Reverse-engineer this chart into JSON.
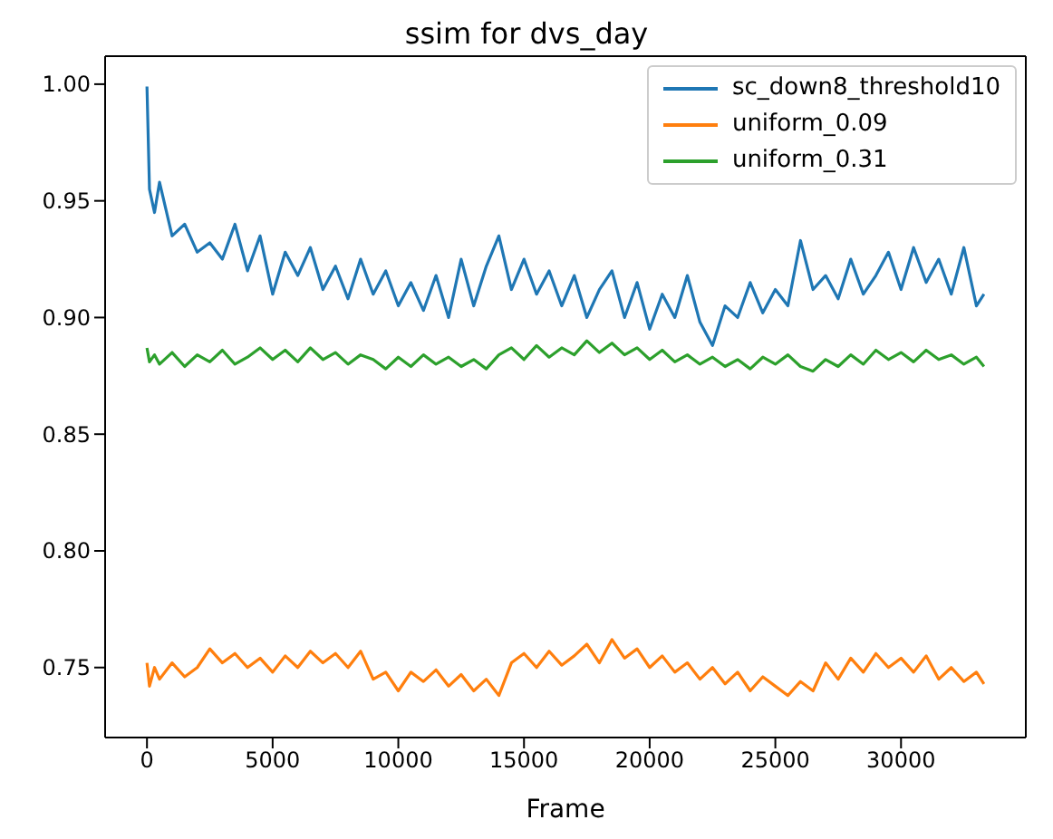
{
  "chart_data": {
    "type": "line",
    "title": "ssim for dvs_day",
    "xlabel": "Frame",
    "x": [
      0,
      100,
      300,
      500,
      1000,
      1500,
      2000,
      2500,
      3000,
      3500,
      4000,
      4500,
      5000,
      5500,
      6000,
      6500,
      7000,
      7500,
      8000,
      8500,
      9000,
      9500,
      10000,
      10500,
      11000,
      11500,
      12000,
      12500,
      13000,
      13500,
      14000,
      14500,
      15000,
      15500,
      16000,
      16500,
      17000,
      17500,
      18000,
      18500,
      19000,
      19500,
      20000,
      20500,
      21000,
      21500,
      22000,
      22500,
      23000,
      23500,
      24000,
      24500,
      25000,
      25500,
      26000,
      26500,
      27000,
      27500,
      28000,
      28500,
      29000,
      29500,
      30000,
      30500,
      31000,
      31500,
      32000,
      32500,
      33000,
      33300
    ],
    "series": [
      {
        "name": "sc_down8_threshold10",
        "color": "#1f77b4",
        "values": [
          0.999,
          0.955,
          0.945,
          0.958,
          0.935,
          0.94,
          0.928,
          0.932,
          0.925,
          0.94,
          0.92,
          0.935,
          0.91,
          0.928,
          0.918,
          0.93,
          0.912,
          0.922,
          0.908,
          0.925,
          0.91,
          0.92,
          0.905,
          0.915,
          0.903,
          0.918,
          0.9,
          0.925,
          0.905,
          0.922,
          0.935,
          0.912,
          0.925,
          0.91,
          0.92,
          0.905,
          0.918,
          0.9,
          0.912,
          0.92,
          0.9,
          0.915,
          0.895,
          0.91,
          0.9,
          0.918,
          0.898,
          0.888,
          0.905,
          0.9,
          0.915,
          0.902,
          0.912,
          0.905,
          0.933,
          0.912,
          0.918,
          0.908,
          0.925,
          0.91,
          0.918,
          0.928,
          0.912,
          0.93,
          0.915,
          0.925,
          0.91,
          0.93,
          0.905,
          0.91
        ]
      },
      {
        "name": "uniform_0.09",
        "color": "#ff7f0e",
        "values": [
          0.752,
          0.742,
          0.75,
          0.745,
          0.752,
          0.746,
          0.75,
          0.758,
          0.752,
          0.756,
          0.75,
          0.754,
          0.748,
          0.755,
          0.75,
          0.757,
          0.752,
          0.756,
          0.75,
          0.757,
          0.745,
          0.748,
          0.74,
          0.748,
          0.744,
          0.749,
          0.742,
          0.747,
          0.74,
          0.745,
          0.738,
          0.752,
          0.756,
          0.75,
          0.757,
          0.751,
          0.755,
          0.76,
          0.752,
          0.762,
          0.754,
          0.758,
          0.75,
          0.755,
          0.748,
          0.752,
          0.745,
          0.75,
          0.743,
          0.748,
          0.74,
          0.746,
          0.742,
          0.738,
          0.744,
          0.74,
          0.752,
          0.745,
          0.754,
          0.748,
          0.756,
          0.75,
          0.754,
          0.748,
          0.755,
          0.745,
          0.75,
          0.744,
          0.748,
          0.743
        ]
      },
      {
        "name": "uniform_0.31",
        "color": "#2ca02c",
        "values": [
          0.887,
          0.881,
          0.884,
          0.88,
          0.885,
          0.879,
          0.884,
          0.881,
          0.886,
          0.88,
          0.883,
          0.887,
          0.882,
          0.886,
          0.881,
          0.887,
          0.882,
          0.885,
          0.88,
          0.884,
          0.882,
          0.878,
          0.883,
          0.879,
          0.884,
          0.88,
          0.883,
          0.879,
          0.882,
          0.878,
          0.884,
          0.887,
          0.882,
          0.888,
          0.883,
          0.887,
          0.884,
          0.89,
          0.885,
          0.889,
          0.884,
          0.887,
          0.882,
          0.886,
          0.881,
          0.884,
          0.88,
          0.883,
          0.879,
          0.882,
          0.878,
          0.883,
          0.88,
          0.884,
          0.879,
          0.877,
          0.882,
          0.879,
          0.884,
          0.88,
          0.886,
          0.882,
          0.885,
          0.881,
          0.886,
          0.882,
          0.884,
          0.88,
          0.883,
          0.879
        ]
      }
    ],
    "xlim": [
      -1665,
      34965
    ],
    "xticks": [
      0,
      5000,
      10000,
      15000,
      20000,
      25000,
      30000
    ],
    "ylim": [
      0.72,
      1.012
    ],
    "yticks": [
      {
        "value": 0.75,
        "label": "0.75"
      },
      {
        "value": 0.8,
        "label": "0.80"
      },
      {
        "value": 0.85,
        "label": "0.85"
      },
      {
        "value": 0.9,
        "label": "0.90"
      },
      {
        "value": 0.95,
        "label": "0.95"
      },
      {
        "value": 1,
        "label": "1.00"
      }
    ],
    "grid": false,
    "legend": "top right",
    "marker": "none",
    "line_style": "solid"
  }
}
